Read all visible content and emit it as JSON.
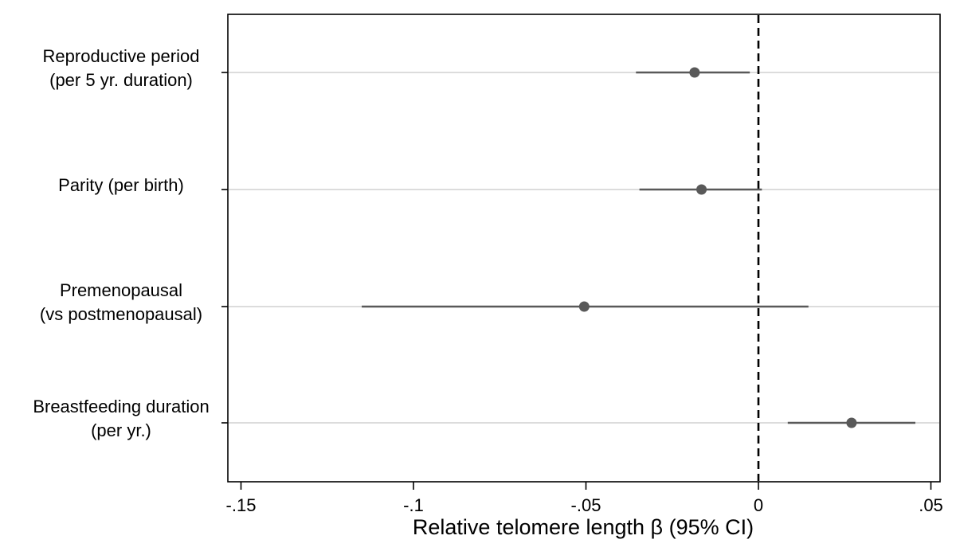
{
  "chart_data": {
    "type": "scatter",
    "subtype": "forest-plot",
    "title": "",
    "xlabel": "Relative telomere length β (95% CI)",
    "ylabel": "",
    "xlim": [
      -0.155,
      0.055
    ],
    "xticks": [
      {
        "value": -0.15,
        "label": "-.15"
      },
      {
        "value": -0.1,
        "label": "-.1"
      },
      {
        "value": -0.05,
        "label": "-.05"
      },
      {
        "value": 0,
        "label": "0"
      },
      {
        "value": 0.05,
        "label": ".05"
      }
    ],
    "reference_line": {
      "x": 0,
      "style": "dashed"
    },
    "grid": "horizontal",
    "legend": "none",
    "colors": {
      "marker": "#595959",
      "ci": "#595959",
      "grid": "#dcdcdc",
      "frame": "#000000"
    },
    "rows": [
      {
        "label_lines": [
          "Reproductive period",
          "(per 5 yr. duration)"
        ],
        "estimate": -0.0185,
        "ci_low": -0.0355,
        "ci_high": -0.0025
      },
      {
        "label_lines": [
          "Parity (per birth)"
        ],
        "estimate": -0.0165,
        "ci_low": -0.0345,
        "ci_high": 0.001
      },
      {
        "label_lines": [
          "Premenopausal",
          "(vs postmenopausal)"
        ],
        "estimate": -0.0505,
        "ci_low": -0.115,
        "ci_high": 0.0145
      },
      {
        "label_lines": [
          "Breastfeeding duration",
          "(per yr.)"
        ],
        "estimate": 0.027,
        "ci_low": 0.0085,
        "ci_high": 0.0455
      }
    ]
  }
}
